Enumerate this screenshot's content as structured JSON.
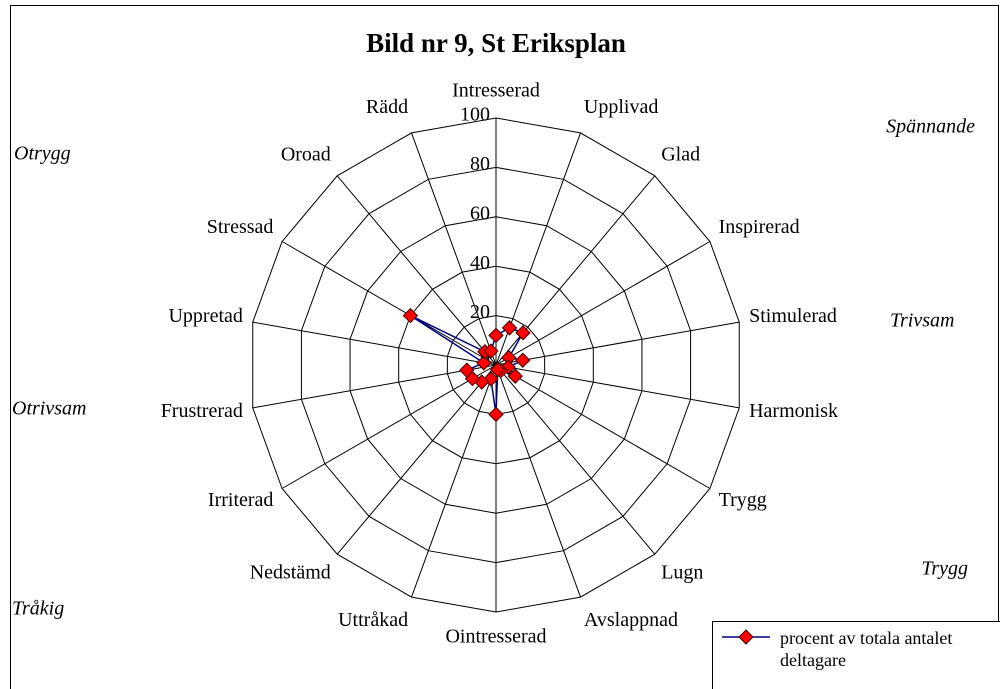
{
  "chart_data": {
    "type": "radar",
    "title": "Bild nr 9, St Eriksplan",
    "categories": [
      "Intresserad",
      "Upplivad",
      "Glad",
      "Inspirerad",
      "Stimulerad",
      "Harmonisk",
      "Trygg",
      "Lugn",
      "Avslappnad",
      "Ointresserad",
      "Uttråkad",
      "Nedstämd",
      "Irriterad",
      "Frustrerad",
      "Uppretad",
      "Stressad",
      "Oroad",
      "Rädd"
    ],
    "series": [
      {
        "name": "procent av totala antalet deltagare",
        "color": "#000080",
        "marker_color": "#ff0000",
        "values": [
          12,
          16,
          17,
          6,
          11,
          5,
          9,
          3,
          2,
          20,
          6,
          9,
          11,
          12,
          5,
          40,
          7,
          6
        ]
      }
    ],
    "rlim": [
      0,
      100
    ],
    "rticks": [
      0,
      20,
      40,
      60,
      80,
      100
    ],
    "grid": true,
    "annotations": [
      "Otrygg",
      "Spännande",
      "Trivsam",
      "Otrivsam",
      "Trygg",
      "Tråkig"
    ]
  }
}
